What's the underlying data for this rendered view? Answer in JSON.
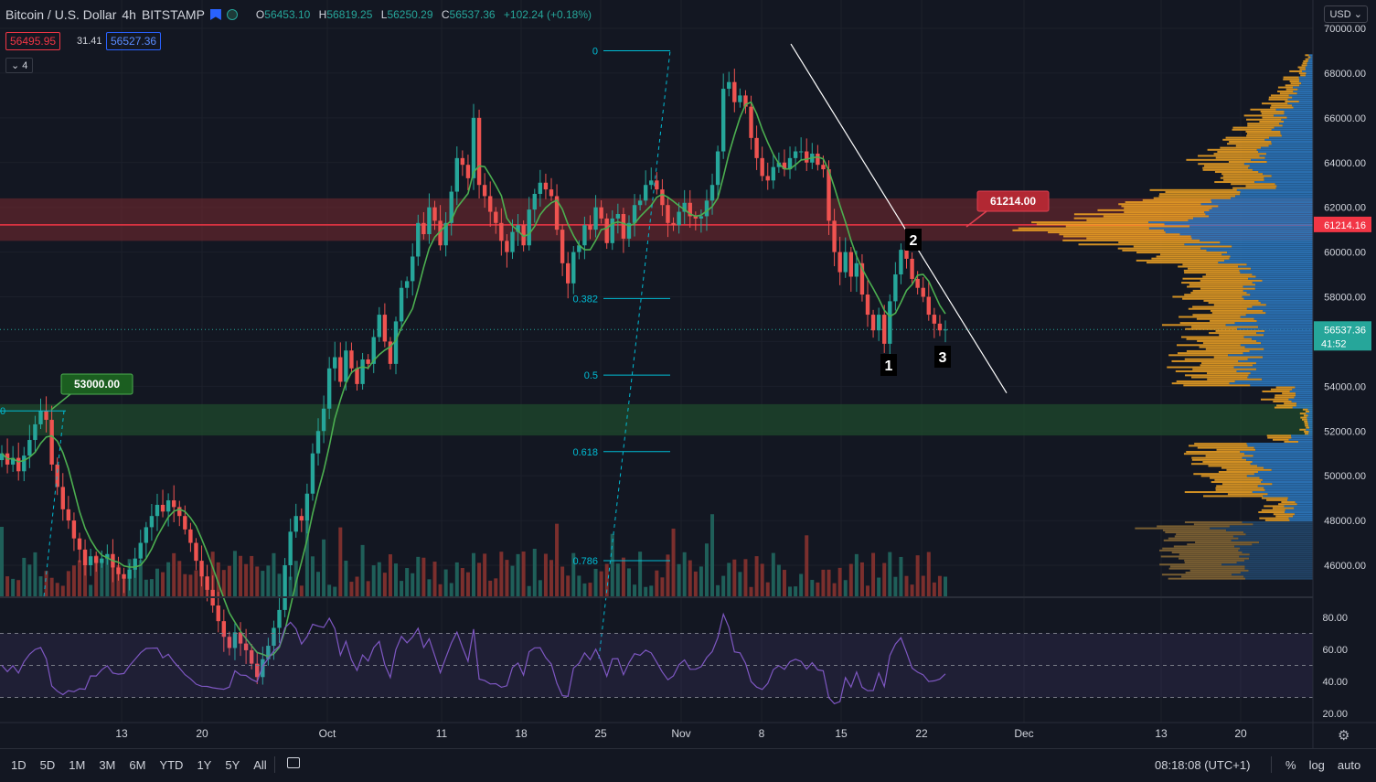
{
  "header": {
    "symbol": "Bitcoin / U.S. Dollar",
    "interval": "4h",
    "exchange": "BITSTAMP",
    "ohlc": {
      "o_label": "O",
      "o": "56453.10",
      "h_label": "H",
      "h": "56819.25",
      "l_label": "L",
      "l": "56250.29",
      "c_label": "C",
      "c": "56537.36",
      "change": "+102.24 (+0.18%)"
    }
  },
  "quote": {
    "bid": "56495.95",
    "spread": "31.41",
    "ask": "56527.36",
    "indicators_label": "4"
  },
  "currency": "USD",
  "price_axis_labels": [
    "70000.00",
    "68000.00",
    "66000.00",
    "64000.00",
    "62000.00",
    "60000.00",
    "58000.00",
    "56000.00",
    "54000.00",
    "52000.00",
    "50000.00",
    "48000.00",
    "46000.00"
  ],
  "rsi_axis_labels": [
    "80.00",
    "60.00",
    "40.00",
    "20.00"
  ],
  "time_labels": [
    "13",
    "20",
    "Oct",
    "11",
    "18",
    "25",
    "Nov",
    "8",
    "15",
    "22",
    "Dec",
    "13",
    "20"
  ],
  "price_badge": {
    "value": "61214.16",
    "color": "#f23645"
  },
  "last_badge": {
    "value": "56537.36",
    "countdown": "41:52",
    "color": "#26a69a"
  },
  "annotations": {
    "resistance_label": "61214.00",
    "support_label": "53000.00",
    "fib_left_edge": "0",
    "wave_1": "1",
    "wave_2": "2",
    "wave_3": "3"
  },
  "fib_levels": [
    "0",
    "0.382",
    "0.5",
    "0.618",
    "0.786"
  ],
  "bottom": {
    "ranges": [
      "1D",
      "5D",
      "1M",
      "3M",
      "6M",
      "YTD",
      "1Y",
      "5Y",
      "All"
    ],
    "clock": "08:18:08 (UTC+1)",
    "opt_percent": "%",
    "opt_log": "log",
    "opt_auto": "auto"
  },
  "colors": {
    "up": "#26a69a",
    "down": "#ef5350",
    "ma": "#4caf50",
    "rsi": "#7e57c2",
    "fib": "#00bcd4",
    "resistance": "#f23645",
    "support": "#1b5e20"
  },
  "chart_data": {
    "type": "line",
    "series_kind": "candlestick",
    "ylim": [
      45000,
      71000
    ],
    "close_series": [
      51000,
      50500,
      50800,
      50200,
      50900,
      51600,
      52300,
      52900,
      52500,
      50500,
      49500,
      48500,
      48000,
      47200,
      46700,
      46000,
      46400,
      46100,
      46300,
      46500,
      45900,
      45600,
      45400,
      45800,
      46300,
      47000,
      47700,
      48200,
      48700,
      48400,
      48900,
      48600,
      48200,
      47600,
      47000,
      46200,
      45500,
      44900,
      44200,
      43500,
      42800,
      42300,
      43000,
      42500,
      42200,
      41600,
      41000,
      41800,
      42400,
      43200,
      44000,
      46000,
      47500,
      48200,
      48000,
      49200,
      51000,
      52000,
      53000,
      54800,
      55300,
      54200,
      55600,
      54800,
      54100,
      55200,
      55000,
      56200,
      57200,
      56000,
      55000,
      56900,
      58400,
      58700,
      59800,
      61300,
      60800,
      62000,
      61400,
      60300,
      61300,
      62700,
      64200,
      63900,
      63300,
      66000,
      63000,
      62500,
      61800,
      61300,
      60500,
      60000,
      60900,
      61200,
      60300,
      61900,
      62600,
      63100,
      62800,
      62500,
      61000,
      59500,
      58600,
      60000,
      60300,
      61200,
      61000,
      62000,
      61500,
      60400,
      61500,
      61700,
      60600,
      61300,
      62100,
      62300,
      63000,
      63200,
      62800,
      62100,
      61300,
      61200,
      61800,
      62200,
      61600,
      61500,
      61600,
      62300,
      63000,
      64500,
      67300,
      67600,
      66700,
      67000,
      66500,
      65100,
      64200,
      63400,
      63200,
      63800,
      64000,
      63700,
      64200,
      64500,
      64500,
      64000,
      64400,
      63900,
      63700,
      61400,
      60000,
      59100,
      60000,
      58900,
      59500,
      58100,
      57200,
      56500,
      57200,
      55900,
      57800,
      59000,
      60100,
      59700,
      58800,
      58400,
      58000,
      57200,
      56800,
      56500,
      56537
    ],
    "ma_series_label": "Moving average",
    "resistance_zone": [
      60500,
      62400
    ],
    "resistance_line": 61214,
    "support_zone": [
      51800,
      53200
    ],
    "fib_retracement": {
      "high": 69000,
      "low": 40000,
      "levels": [
        0,
        0.382,
        0.5,
        0.618,
        0.786
      ]
    },
    "trendline": {
      "from_date": "Nov 9",
      "from_price": 69300,
      "to_date": "Nov 25",
      "to_price": 54700
    },
    "rsi": {
      "upper": 70,
      "lower": 30,
      "ylim": [
        15,
        88
      ]
    }
  }
}
